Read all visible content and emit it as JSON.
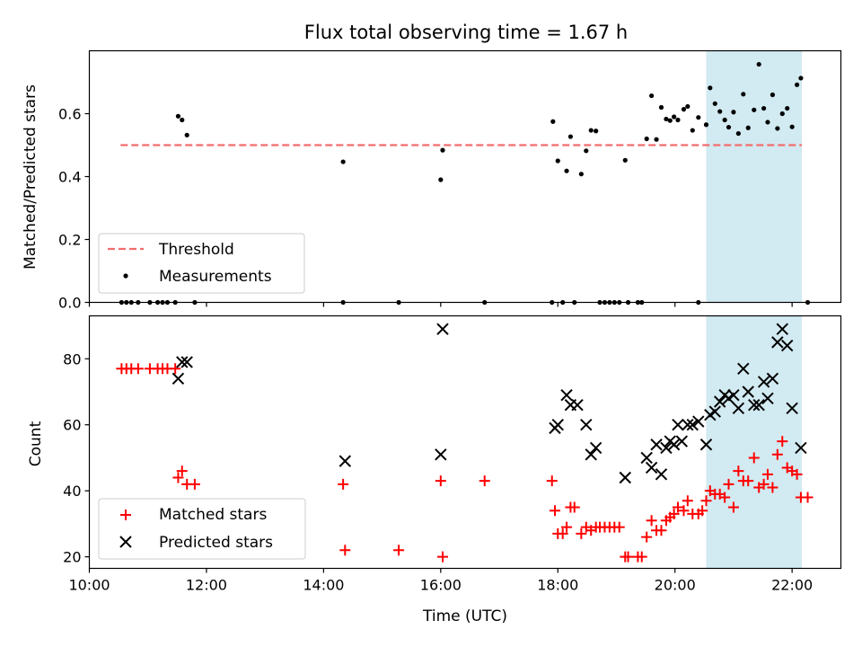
{
  "figure_title": "Flux total observing time = 1.67 h",
  "colors": {
    "threshold": "#f26d6d",
    "measurement": "#000000",
    "matched": "#ff0000",
    "predicted": "#000000",
    "shade": "#add8e6"
  },
  "chart_data": [
    {
      "type": "scatter",
      "title": "Flux total observing time = 1.67 h",
      "xlabel": "",
      "ylabel": "Matched/Predicted stars",
      "xlim": [
        "10:00",
        "22:50"
      ],
      "ylim": [
        0,
        0.8
      ],
      "xticks": [
        "10:00",
        "12:00",
        "14:00",
        "16:00",
        "18:00",
        "20:00",
        "22:00"
      ],
      "yticks": [
        0.0,
        0.2,
        0.4,
        0.6
      ],
      "ytick_labels": [
        "0.0",
        "0.2",
        "0.4",
        "0.6"
      ],
      "xtick_labels_shown": false,
      "shaded_span": [
        "20:32",
        "22:10"
      ],
      "legend": {
        "placement": "lower-left",
        "entries": [
          "Threshold",
          "Measurements"
        ]
      },
      "threshold": {
        "name": "Threshold",
        "value": 0.5,
        "x": [
          "10:32",
          "22:10"
        ],
        "style": "dashed"
      },
      "series": [
        {
          "name": "Measurements",
          "marker": "dot",
          "points": [
            [
              "10:33",
              0
            ],
            [
              "10:38",
              0
            ],
            [
              "10:43",
              0
            ],
            [
              "10:50",
              0
            ],
            [
              "11:02",
              0
            ],
            [
              "11:10",
              0
            ],
            [
              "11:15",
              0
            ],
            [
              "11:20",
              0
            ],
            [
              "11:28",
              0
            ],
            [
              "11:31",
              0.592
            ],
            [
              "11:35",
              0.58
            ],
            [
              "11:40",
              0.532
            ],
            [
              "11:48",
              0
            ],
            [
              "14:20",
              0.447
            ],
            [
              "14:20",
              0
            ],
            [
              "15:17",
              0
            ],
            [
              "16:00",
              0.39
            ],
            [
              "16:02",
              0.484
            ],
            [
              "16:45",
              0
            ],
            [
              "17:54",
              0
            ],
            [
              "17:55",
              0.575
            ],
            [
              "18:00",
              0.45
            ],
            [
              "18:05",
              0
            ],
            [
              "18:09",
              0.418
            ],
            [
              "18:13",
              0.527
            ],
            [
              "18:17",
              0
            ],
            [
              "18:24",
              0.408
            ],
            [
              "18:29",
              0.482
            ],
            [
              "18:34",
              0.547
            ],
            [
              "18:39",
              0.545
            ],
            [
              "18:43",
              0
            ],
            [
              "18:48",
              0
            ],
            [
              "18:53",
              0
            ],
            [
              "18:58",
              0
            ],
            [
              "19:03",
              0
            ],
            [
              "19:09",
              0.452
            ],
            [
              "19:12",
              0
            ],
            [
              "19:22",
              0
            ],
            [
              "19:26",
              0
            ],
            [
              "19:31",
              0.52
            ],
            [
              "19:36",
              0.657
            ],
            [
              "19:41",
              0.518
            ],
            [
              "19:46",
              0.62
            ],
            [
              "19:51",
              0.583
            ],
            [
              "19:55",
              0.578
            ],
            [
              "19:59",
              0.59
            ],
            [
              "20:03",
              0.58
            ],
            [
              "20:09",
              0.614
            ],
            [
              "20:13",
              0.623
            ],
            [
              "20:18",
              0.547
            ],
            [
              "20:24",
              0.588
            ],
            [
              "20:24",
              0
            ],
            [
              "20:32",
              0.565
            ],
            [
              "20:36",
              0.682
            ],
            [
              "20:41",
              0.632
            ],
            [
              "20:46",
              0.607
            ],
            [
              "20:51",
              0.58
            ],
            [
              "20:55",
              0.557
            ],
            [
              "21:00",
              0.605
            ],
            [
              "21:05",
              0.537
            ],
            [
              "21:10",
              0.662
            ],
            [
              "21:15",
              0.555
            ],
            [
              "21:21",
              0.612
            ],
            [
              "21:26",
              0.757
            ],
            [
              "21:31",
              0.617
            ],
            [
              "21:35",
              0.573
            ],
            [
              "21:40",
              0.66
            ],
            [
              "21:45",
              0.553
            ],
            [
              "21:50",
              0.6
            ],
            [
              "21:55",
              0.617
            ],
            [
              "22:00",
              0.558
            ],
            [
              "22:05",
              0.692
            ],
            [
              "22:09",
              0.713
            ],
            [
              "22:16",
              0
            ]
          ]
        }
      ]
    },
    {
      "type": "scatter",
      "title": "",
      "xlabel": "Time (UTC)",
      "ylabel": "Count",
      "xlim": [
        "10:00",
        "22:50"
      ],
      "ylim": [
        16.5,
        93
      ],
      "xticks": [
        "10:00",
        "12:00",
        "14:00",
        "16:00",
        "18:00",
        "20:00",
        "22:00"
      ],
      "xtick_labels": [
        "10:00",
        "12:00",
        "14:00",
        "16:00",
        "18:00",
        "20:00",
        "22:00"
      ],
      "yticks": [
        20,
        40,
        60,
        80
      ],
      "ytick_labels": [
        "20",
        "40",
        "60",
        "80"
      ],
      "shaded_span": [
        "20:32",
        "22:10"
      ],
      "legend": {
        "placement": "lower-left",
        "entries": [
          "Matched stars",
          "Predicted stars"
        ]
      },
      "series": [
        {
          "name": "Matched stars",
          "marker": "plus",
          "points": [
            [
              "10:33",
              77
            ],
            [
              "10:38",
              77
            ],
            [
              "10:43",
              77
            ],
            [
              "10:50",
              77
            ],
            [
              "11:02",
              77
            ],
            [
              "11:10",
              77
            ],
            [
              "11:15",
              77
            ],
            [
              "11:20",
              77
            ],
            [
              "11:28",
              77
            ],
            [
              "11:31",
              44
            ],
            [
              "11:35",
              46
            ],
            [
              "11:40",
              42
            ],
            [
              "11:48",
              42
            ],
            [
              "14:20",
              42
            ],
            [
              "14:22",
              22
            ],
            [
              "15:17",
              22
            ],
            [
              "16:00",
              43
            ],
            [
              "16:02",
              20
            ],
            [
              "16:45",
              43
            ],
            [
              "17:54",
              43
            ],
            [
              "17:57",
              34
            ],
            [
              "18:00",
              27
            ],
            [
              "18:05",
              27
            ],
            [
              "18:09",
              29
            ],
            [
              "18:13",
              35
            ],
            [
              "18:17",
              35
            ],
            [
              "18:24",
              27
            ],
            [
              "18:29",
              29
            ],
            [
              "18:34",
              28
            ],
            [
              "18:39",
              29
            ],
            [
              "18:43",
              29
            ],
            [
              "18:48",
              29
            ],
            [
              "18:53",
              29
            ],
            [
              "18:58",
              29
            ],
            [
              "19:03",
              29
            ],
            [
              "19:09",
              20
            ],
            [
              "19:12",
              20
            ],
            [
              "19:22",
              20
            ],
            [
              "19:26",
              20
            ],
            [
              "19:31",
              26
            ],
            [
              "19:36",
              31
            ],
            [
              "19:41",
              28
            ],
            [
              "19:46",
              28
            ],
            [
              "19:51",
              31
            ],
            [
              "19:55",
              32
            ],
            [
              "19:59",
              33
            ],
            [
              "20:03",
              35
            ],
            [
              "20:09",
              34
            ],
            [
              "20:13",
              37
            ],
            [
              "20:18",
              33
            ],
            [
              "20:24",
              33
            ],
            [
              "20:28",
              34
            ],
            [
              "20:32",
              37
            ],
            [
              "20:36",
              40
            ],
            [
              "20:41",
              39
            ],
            [
              "20:46",
              39
            ],
            [
              "20:51",
              38
            ],
            [
              "20:55",
              42
            ],
            [
              "21:00",
              35
            ],
            [
              "21:05",
              46
            ],
            [
              "21:10",
              43
            ],
            [
              "21:15",
              43
            ],
            [
              "21:21",
              50
            ],
            [
              "21:26",
              41
            ],
            [
              "21:31",
              42
            ],
            [
              "21:35",
              45
            ],
            [
              "21:40",
              41
            ],
            [
              "21:45",
              51
            ],
            [
              "21:50",
              55
            ],
            [
              "21:55",
              47
            ],
            [
              "22:00",
              46
            ],
            [
              "22:05",
              45
            ],
            [
              "22:09",
              38
            ],
            [
              "22:16",
              38
            ]
          ]
        },
        {
          "name": "Predicted stars",
          "marker": "x",
          "points": [
            [
              "11:31",
              74
            ],
            [
              "11:35",
              79
            ],
            [
              "11:40",
              79
            ],
            [
              "14:22",
              49
            ],
            [
              "16:00",
              51
            ],
            [
              "16:02",
              89
            ],
            [
              "17:57",
              59
            ],
            [
              "18:00",
              60
            ],
            [
              "18:09",
              69
            ],
            [
              "18:13",
              66
            ],
            [
              "18:20",
              66
            ],
            [
              "18:29",
              60
            ],
            [
              "18:34",
              51
            ],
            [
              "18:39",
              53
            ],
            [
              "19:09",
              44
            ],
            [
              "19:31",
              50
            ],
            [
              "19:36",
              47
            ],
            [
              "19:41",
              54
            ],
            [
              "19:46",
              45
            ],
            [
              "19:51",
              53
            ],
            [
              "19:55",
              55
            ],
            [
              "19:59",
              54
            ],
            [
              "20:03",
              60
            ],
            [
              "20:07",
              55
            ],
            [
              "20:13",
              60
            ],
            [
              "20:18",
              60
            ],
            [
              "20:24",
              61
            ],
            [
              "20:32",
              54
            ],
            [
              "20:36",
              63
            ],
            [
              "20:41",
              64
            ],
            [
              "20:46",
              67
            ],
            [
              "20:51",
              69
            ],
            [
              "20:55",
              68
            ],
            [
              "21:00",
              69
            ],
            [
              "21:05",
              65
            ],
            [
              "21:10",
              77
            ],
            [
              "21:15",
              70
            ],
            [
              "21:21",
              66
            ],
            [
              "21:26",
              66
            ],
            [
              "21:31",
              73
            ],
            [
              "21:35",
              68
            ],
            [
              "21:40",
              74
            ],
            [
              "21:45",
              85
            ],
            [
              "21:50",
              89
            ],
            [
              "21:55",
              84
            ],
            [
              "22:00",
              65
            ],
            [
              "22:09",
              53
            ]
          ]
        }
      ]
    }
  ]
}
